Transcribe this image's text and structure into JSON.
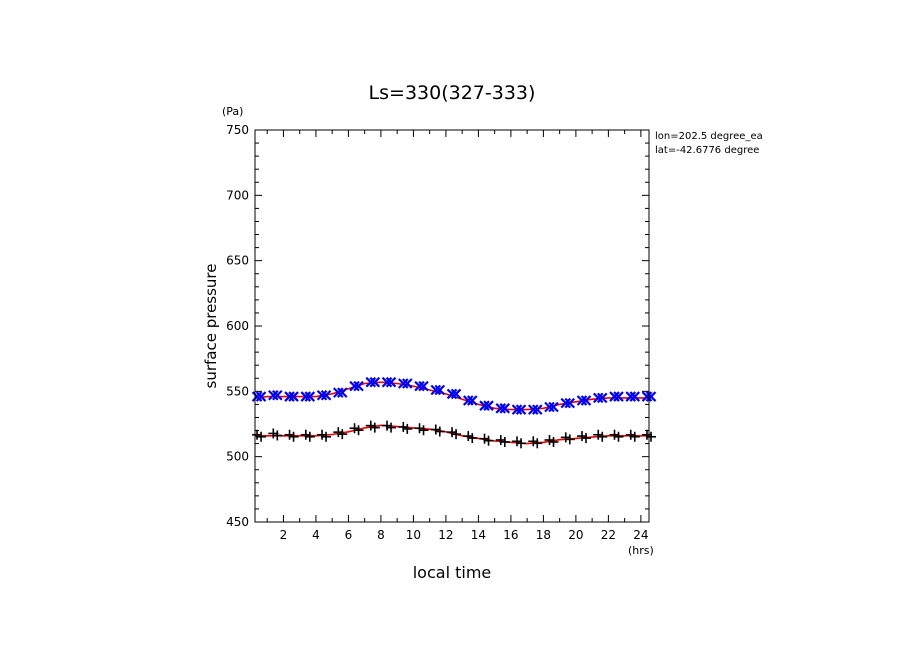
{
  "chart_data": {
    "type": "scatter",
    "title": "Ls=330(327-333)",
    "xlabel": "local time",
    "xunit": "(hrs)",
    "ylabel": "surface pressure",
    "yunit": "(Pa)",
    "annotations": [
      "lon=202.5 degree_ea",
      "lat=-42.6776 degree"
    ],
    "xlim": [
      0.25,
      24.5
    ],
    "ylim": [
      450,
      750
    ],
    "xticks": [
      "2",
      "4",
      "6",
      "8",
      "10",
      "12",
      "14",
      "16",
      "18",
      "20",
      "22",
      "24"
    ],
    "yticks": [
      "450",
      "500",
      "550",
      "600",
      "650",
      "700",
      "750"
    ],
    "grid": false,
    "colors": {
      "upper_markers": "#0000ee",
      "lower_markers": "#000000",
      "fit_line": "#ee0000",
      "axes": "#000000"
    },
    "series": [
      {
        "marker": "x-icon",
        "x": [
          0.5,
          1.5,
          2.5,
          3.5,
          4.5,
          5.5,
          6.5,
          7.5,
          8.5,
          9.5,
          10.5,
          11.5,
          12.5,
          13.5,
          14.5,
          15.5,
          16.5,
          17.5,
          18.5,
          19.5,
          20.5,
          21.5,
          22.5,
          23.5,
          24.5
        ],
        "y": [
          546,
          547,
          546,
          546,
          547,
          549,
          554,
          557,
          557,
          556,
          554,
          551,
          548,
          543,
          539,
          537,
          536,
          536,
          538,
          541,
          543,
          545,
          546,
          546,
          546
        ]
      },
      {
        "marker": "plus-icon",
        "x": [
          0.5,
          1.5,
          2.5,
          3.5,
          4.5,
          5.5,
          6.5,
          7.5,
          8.5,
          9.5,
          10.5,
          11.5,
          12.5,
          13.5,
          14.5,
          15.5,
          16.5,
          17.5,
          18.5,
          19.5,
          20.5,
          21.5,
          22.5,
          23.5,
          24.5
        ],
        "y": [
          516,
          517,
          516,
          516,
          516,
          518,
          521,
          523,
          523,
          522,
          521,
          520,
          518,
          515,
          513,
          512,
          511,
          511,
          512,
          514,
          515,
          516,
          516,
          516,
          516
        ]
      },
      {
        "type": "line",
        "x": [
          0.25,
          1,
          2,
          3,
          4,
          5,
          6,
          7,
          8,
          9,
          10,
          11,
          12,
          13,
          14,
          15,
          16,
          17,
          18,
          19,
          20,
          21,
          22,
          23,
          24,
          24.5
        ],
        "y": [
          545,
          546,
          546,
          546,
          546,
          548,
          552,
          556,
          557,
          556,
          554,
          551,
          548,
          544,
          540,
          537,
          536,
          536,
          537,
          540,
          542,
          544,
          545,
          545,
          545,
          545
        ]
      },
      {
        "type": "line",
        "x": [
          0.25,
          1,
          2,
          3,
          4,
          5,
          6,
          7,
          8,
          9,
          10,
          11,
          12,
          13,
          14,
          15,
          16,
          17,
          18,
          19,
          20,
          21,
          22,
          23,
          24,
          24.5
        ],
        "y": [
          516,
          516,
          516,
          516,
          516,
          517,
          519,
          522,
          524,
          523,
          522,
          521,
          519,
          516,
          514,
          512,
          511,
          510,
          511,
          513,
          514,
          515,
          516,
          516,
          516,
          516
        ]
      }
    ]
  }
}
